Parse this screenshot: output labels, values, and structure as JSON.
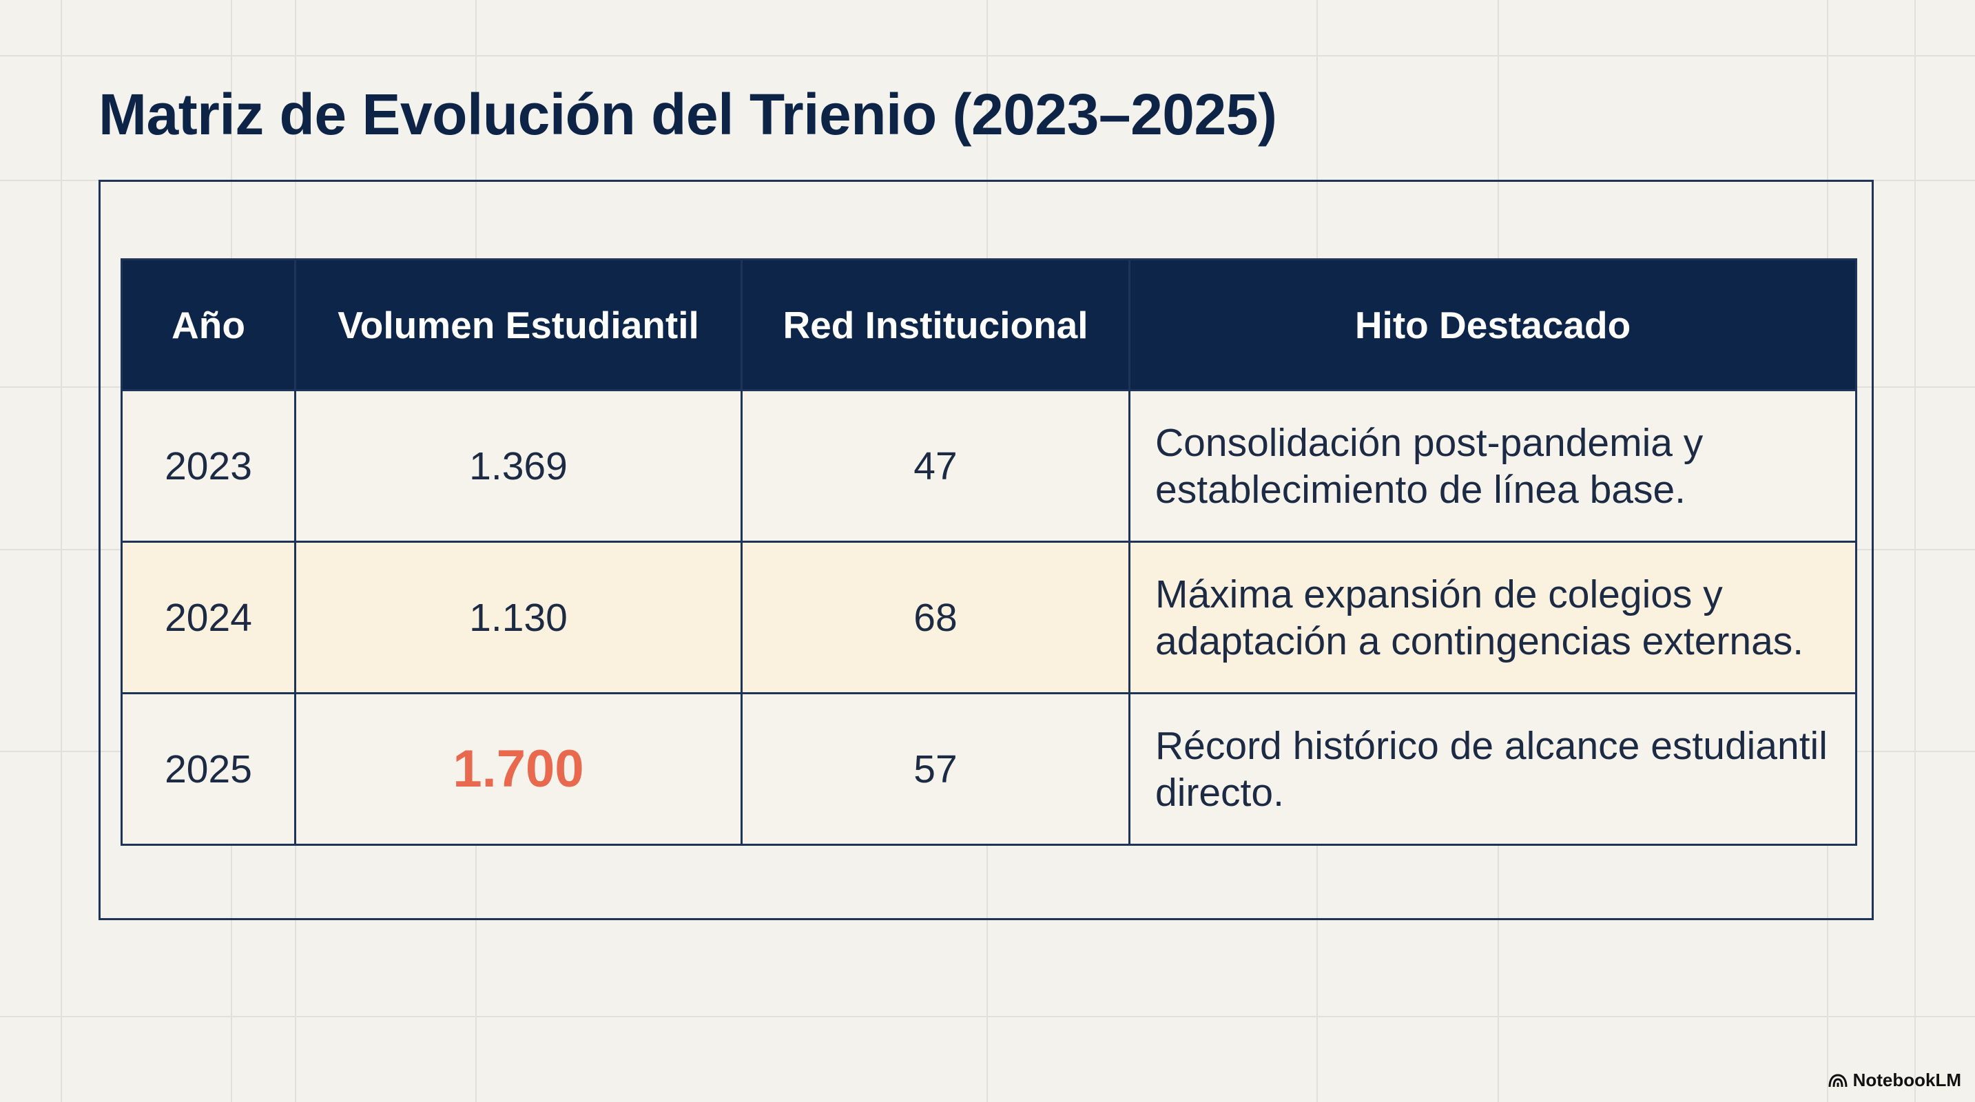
{
  "title": "Matriz de Evolución del Trienio (2023–2025)",
  "table": {
    "headers": [
      "Año",
      "Volumen Estudiantil",
      "Red Institucional",
      "Hito Destacado"
    ],
    "rows": [
      {
        "year": "2023",
        "volume": "1.369",
        "network": "47",
        "milestone": "Consolidación post-pandemia y establecimiento de línea base."
      },
      {
        "year": "2024",
        "volume": "1.130",
        "network": "68",
        "milestone": "Máxima expansión de colegios y adaptación a contingencias externas."
      },
      {
        "year": "2025",
        "volume": "1.700",
        "network": "57",
        "milestone": "Récord histórico de alcance estudiantil directo."
      }
    ]
  },
  "footer": {
    "brand": "NotebookLM",
    "brand_icon": "notebooklm-logo-icon"
  },
  "colors": {
    "background": "#f4f2ec",
    "header_fill": "#0c2549",
    "title_text": "#0d2447",
    "highlight_value": "#e9694e",
    "row_cream": "#faf2de",
    "row_light": "#f5f3ec"
  }
}
